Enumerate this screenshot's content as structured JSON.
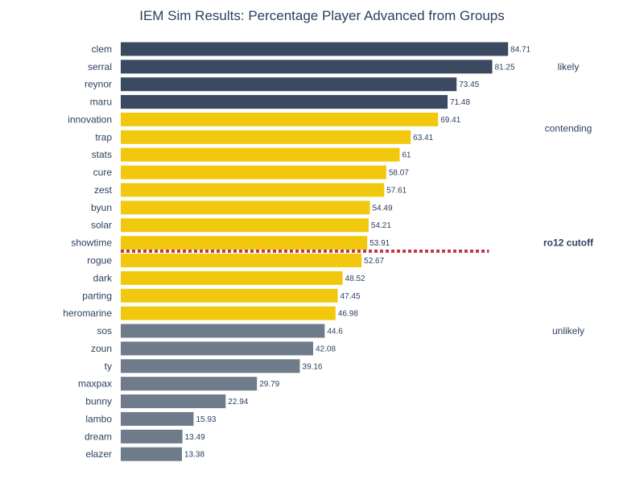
{
  "chart_data": {
    "type": "bar",
    "orientation": "horizontal",
    "title": "IEM Sim Results: Percentage Player Advanced from Groups",
    "xlabel": "",
    "ylabel": "",
    "xlim": [
      0,
      100
    ],
    "grid": false,
    "categories": [
      "clem",
      "serral",
      "reynor",
      "maru",
      "innovation",
      "trap",
      "stats",
      "cure",
      "zest",
      "byun",
      "solar",
      "showtime",
      "rogue",
      "dark",
      "parting",
      "heromarine",
      "sos",
      "zoun",
      "ty",
      "maxpax",
      "bunny",
      "lambo",
      "dream",
      "elazer"
    ],
    "values": [
      84.71,
      81.25,
      73.45,
      71.48,
      69.41,
      63.41,
      61,
      58.07,
      57.61,
      54.49,
      54.21,
      53.91,
      52.67,
      48.52,
      47.45,
      46.98,
      44.6,
      42.08,
      39.16,
      29.79,
      22.94,
      15.93,
      13.49,
      13.38
    ],
    "value_labels": [
      "84.71",
      "81.25",
      "73.45",
      "71.48",
      "69.41",
      "63.41",
      "61",
      "58.07",
      "57.61",
      "54.49",
      "54.21",
      "53.91",
      "52.67",
      "48.52",
      "47.45",
      "46.98",
      "44.6",
      "42.08",
      "39.16",
      "29.79",
      "22.94",
      "15.93",
      "13.49",
      "13.38"
    ],
    "groups": [
      {
        "name": "likely",
        "color": "#3b4a60",
        "start": 0,
        "end": 3
      },
      {
        "name": "contending",
        "color": "#f2c80f",
        "start": 4,
        "end": 15
      },
      {
        "name": "unlikely",
        "color": "#6e7b8b",
        "start": 16,
        "end": 23
      }
    ],
    "annotations": [
      {
        "text": "likely",
        "row": 1.0,
        "bold": false
      },
      {
        "text": "contending",
        "row": 4.5,
        "bold": false
      },
      {
        "text": "ro12 cutoff",
        "row": 11.0,
        "bold": true
      },
      {
        "text": "unlikely",
        "row": 16.0,
        "bold": false
      }
    ],
    "cutoff": {
      "after_row": 11,
      "x_end": 80,
      "color": "#c0394b"
    }
  }
}
